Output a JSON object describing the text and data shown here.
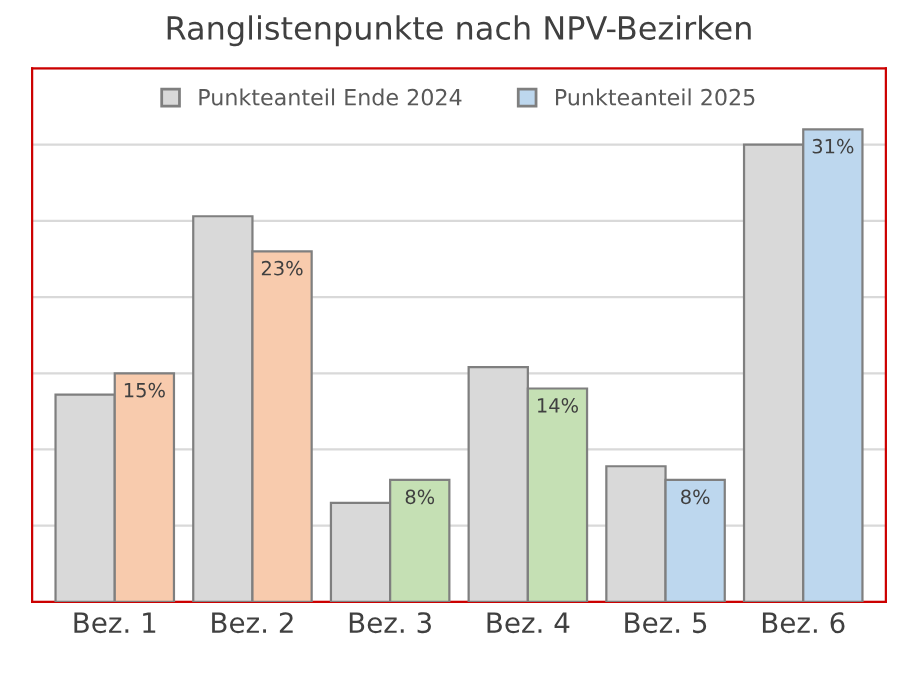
{
  "chart_data": {
    "type": "bar",
    "title": "Ranglistenpunkte nach NPV-Bezirken",
    "categories": [
      "Bez. 1",
      "Bez. 2",
      "Bez. 3",
      "Bez. 4",
      "Bez. 5",
      "Bez. 6"
    ],
    "series": [
      {
        "name": "Punkteanteil Ende 2024",
        "color": "#d9d9d9",
        "values": [
          13.6,
          25.3,
          6.5,
          15.4,
          8.9,
          30.0
        ]
      },
      {
        "name": "Punkteanteil 2025",
        "color": "#bdd7ee",
        "colors": [
          "#f8cbad",
          "#f8cbad",
          "#c5e0b4",
          "#c5e0b4",
          "#bdd7ee",
          "#bdd7ee"
        ],
        "values": [
          15,
          23,
          8,
          14,
          8,
          31
        ],
        "value_labels": [
          "15%",
          "23%",
          "8%",
          "14%",
          "8%",
          "31%"
        ]
      }
    ],
    "ylim": [
      0,
      35
    ],
    "yticks": [
      {
        "value": 0,
        "label": null
      },
      {
        "value": 5,
        "label": null
      },
      {
        "value": 10,
        "label": null
      },
      {
        "value": 15,
        "label": null
      },
      {
        "value": 20,
        "label": null
      },
      {
        "value": 25,
        "label": null
      },
      {
        "value": 30,
        "label": null
      },
      {
        "value": 35,
        "label": null
      }
    ],
    "tick_labels": "x",
    "grid": "y",
    "legend": "top"
  }
}
